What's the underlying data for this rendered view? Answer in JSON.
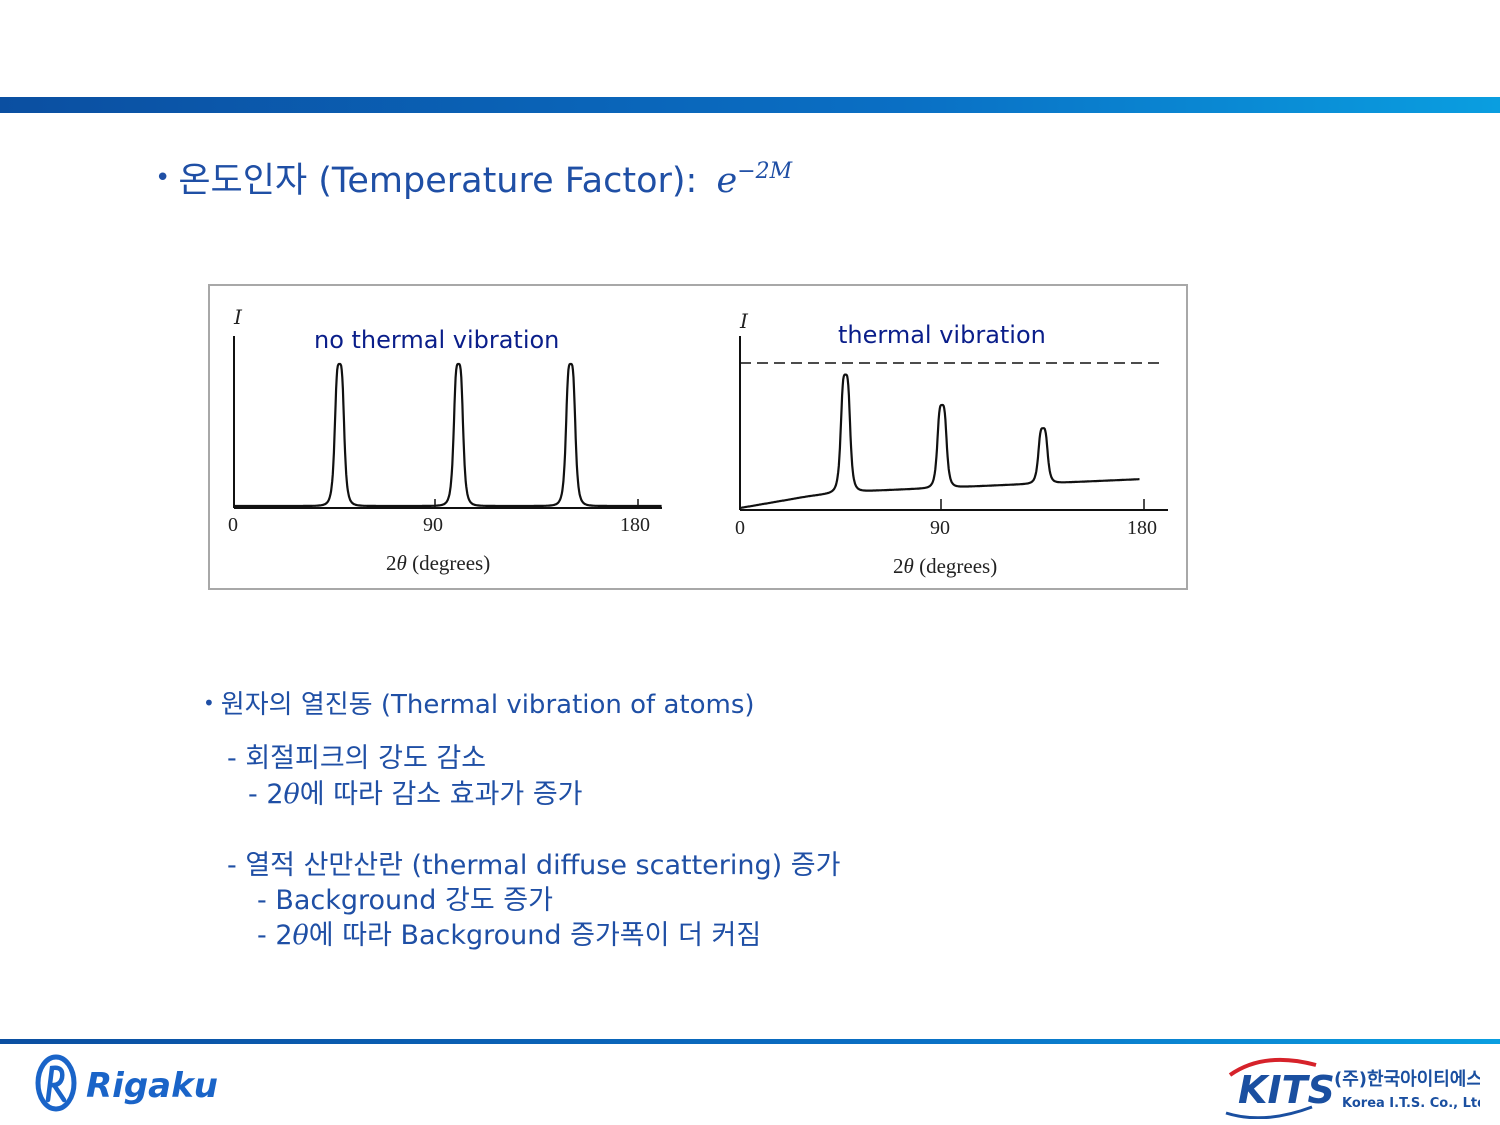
{
  "title": {
    "bullet": "•",
    "text": "온도인자 (Temperature Factor): ",
    "math_base": "e",
    "math_exp": "−2M"
  },
  "figure": {
    "left_panel": {
      "caption": "no thermal vibration",
      "y_label": "I",
      "x_ticks": [
        "0",
        "90",
        "180"
      ],
      "x_label_prefix": "2",
      "x_label_symbol": "θ",
      "x_label_suffix": " (degrees)"
    },
    "right_panel": {
      "caption": "thermal vibration",
      "y_label": "I",
      "x_ticks": [
        "0",
        "90",
        "180"
      ],
      "x_label_prefix": "2",
      "x_label_symbol": "θ",
      "x_label_suffix": " (degrees)"
    }
  },
  "chart_data": [
    {
      "type": "line",
      "title": "no thermal vibration",
      "xlabel": "2θ (degrees)",
      "ylabel": "I",
      "xlim": [
        0,
        180
      ],
      "peaks": [
        {
          "x": 47,
          "y": 1.0
        },
        {
          "x": 100,
          "y": 1.0
        },
        {
          "x": 150,
          "y": 1.0
        }
      ],
      "background": [
        [
          0,
          0
        ],
        [
          180,
          0
        ]
      ]
    },
    {
      "type": "line",
      "title": "thermal vibration",
      "xlabel": "2θ (degrees)",
      "ylabel": "I",
      "xlim": [
        0,
        180
      ],
      "reference_line": {
        "style": "dashed",
        "y": 1.0
      },
      "peaks": [
        {
          "x": 47,
          "y": 0.92
        },
        {
          "x": 90,
          "y": 0.71
        },
        {
          "x": 135,
          "y": 0.55
        }
      ],
      "background": [
        [
          0,
          0.0
        ],
        [
          30,
          0.08
        ],
        [
          45,
          0.11
        ],
        [
          90,
          0.14
        ],
        [
          135,
          0.17
        ],
        [
          180,
          0.2
        ]
      ]
    }
  ],
  "bullets": {
    "main": {
      "bullet": "•",
      "text": "원자의 열진동 (Thermal vibration of atoms)"
    },
    "sub1": "- 회절피크의 강도 감소",
    "sub2_prefix": "- 2",
    "sub2_symbol": "θ",
    "sub2_suffix": "에 따라 감소 효과가 증가",
    "sub3": "-  열적 산만산란 (thermal diffuse scattering) 증가",
    "sub4": "- Background 강도 증가",
    "sub5_prefix": "- 2",
    "sub5_symbol": "θ",
    "sub5_suffix": "에 따라 Background 증가폭이 더 커짐"
  },
  "footer": {
    "left_logo_text": "Rigaku",
    "right_logo_text": "KITS",
    "right_company_kr": "(주)한국아이티에스",
    "right_company_en": "Korea I.T.S. Co., Ltd."
  },
  "colors": {
    "text_blue": "#1f4fa5",
    "bar_dark": "#0b4fa1",
    "bar_light": "#0a9ee0",
    "logo_blue": "#1a64c8"
  }
}
